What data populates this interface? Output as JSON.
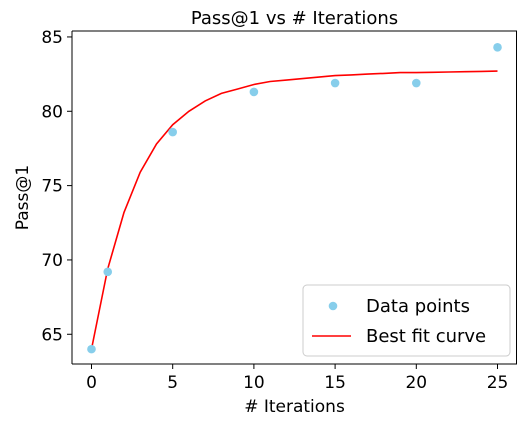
{
  "chart_data": {
    "type": "scatter",
    "title": "Pass@1 vs # Iterations",
    "xlabel": "# Iterations",
    "ylabel": "Pass@1",
    "xlim": [
      -1.2,
      26.2
    ],
    "ylim": [
      63.0,
      85.4
    ],
    "xticks": [
      0,
      5,
      10,
      15,
      20,
      25
    ],
    "yticks": [
      65,
      70,
      75,
      80,
      85
    ],
    "grid": false,
    "legend_position": "lower right",
    "series": [
      {
        "name": "Data points",
        "kind": "scatter",
        "color": "#87CEEB",
        "x": [
          0,
          1,
          5,
          10,
          15,
          20,
          25
        ],
        "y": [
          64.0,
          69.2,
          78.6,
          81.3,
          81.9,
          81.9,
          84.3
        ]
      },
      {
        "name": "Best fit curve",
        "kind": "line",
        "color": "#FF0000",
        "x": [
          0,
          1,
          2,
          3,
          4,
          5,
          6,
          7,
          8,
          9,
          10,
          11,
          12,
          13,
          14,
          15,
          16,
          17,
          18,
          19,
          20,
          21,
          22,
          23,
          24,
          25
        ],
        "y": [
          64.0,
          69.4,
          73.2,
          75.9,
          77.8,
          79.1,
          80.0,
          80.7,
          81.2,
          81.5,
          81.8,
          82.0,
          82.1,
          82.2,
          82.3,
          82.4,
          82.45,
          82.5,
          82.55,
          82.6,
          82.6,
          82.62,
          82.64,
          82.66,
          82.68,
          82.7
        ]
      }
    ]
  }
}
